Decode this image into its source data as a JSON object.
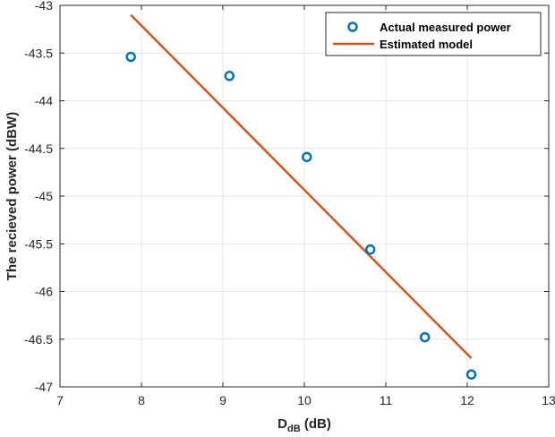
{
  "chart_data": {
    "type": "scatter",
    "xlabel_main": "D",
    "xlabel_sub": "dB",
    "xlabel_unit": " (dB)",
    "ylabel": "The recieved power (dBW)",
    "xlim": [
      7,
      13
    ],
    "ylim": [
      -47,
      -43
    ],
    "xticks": [
      7,
      8,
      9,
      10,
      11,
      12,
      13
    ],
    "yticks": [
      -43,
      -43.5,
      -44,
      -44.5,
      -45,
      -45.5,
      -46,
      -46.5,
      -47
    ],
    "grid": true,
    "legend_position": "top-right",
    "series": [
      {
        "name": "Actual measured power",
        "kind": "scatter",
        "marker": "circle",
        "color": "#0072BD",
        "x": [
          7.87,
          9.08,
          10.03,
          10.81,
          11.48,
          12.05
        ],
        "y": [
          -43.54,
          -43.74,
          -44.59,
          -45.56,
          -46.48,
          -46.87
        ]
      },
      {
        "name": "Estimated model",
        "kind": "line",
        "color": "#D95319",
        "x": [
          7.87,
          12.05
        ],
        "y": [
          -43.1,
          -46.7
        ]
      }
    ]
  }
}
